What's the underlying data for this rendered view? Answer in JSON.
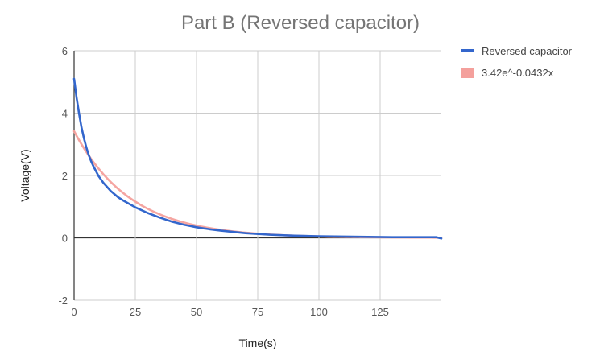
{
  "chart_data": {
    "type": "line",
    "title": "Part B (Reversed capacitor)",
    "xlabel": "Time(s)",
    "ylabel": "Voltage(V)",
    "xlim": [
      0,
      150
    ],
    "ylim": [
      -2,
      6
    ],
    "x_ticks": [
      0,
      25,
      50,
      75,
      100,
      125
    ],
    "x_tick_labels": [
      "0",
      "25",
      "50",
      "75",
      "100",
      "125"
    ],
    "y_ticks": [
      -2,
      0,
      2,
      4,
      6
    ],
    "y_tick_labels": [
      "-2",
      "0",
      "2",
      "4",
      "6"
    ],
    "grid": true,
    "legend_position": "right",
    "series": [
      {
        "name": "Reversed capacitor",
        "color": "#3366cc",
        "x": [
          0,
          1,
          2,
          3,
          4,
          5,
          6,
          7,
          8,
          10,
          12,
          15,
          18,
          20,
          25,
          30,
          35,
          40,
          45,
          50,
          55,
          60,
          70,
          80,
          90,
          100,
          110,
          120,
          130,
          140,
          148,
          150
        ],
        "y": [
          5.1,
          4.5,
          4.0,
          3.55,
          3.2,
          2.9,
          2.65,
          2.45,
          2.28,
          1.98,
          1.76,
          1.5,
          1.3,
          1.2,
          0.98,
          0.8,
          0.65,
          0.52,
          0.42,
          0.34,
          0.28,
          0.23,
          0.15,
          0.1,
          0.07,
          0.05,
          0.04,
          0.03,
          0.02,
          0.02,
          0.02,
          -0.02
        ]
      },
      {
        "name": "3.42e^-0.0432x",
        "color": "#f4a09c",
        "trendline": {
          "a": 3.42,
          "k": 0.0432
        }
      }
    ]
  }
}
